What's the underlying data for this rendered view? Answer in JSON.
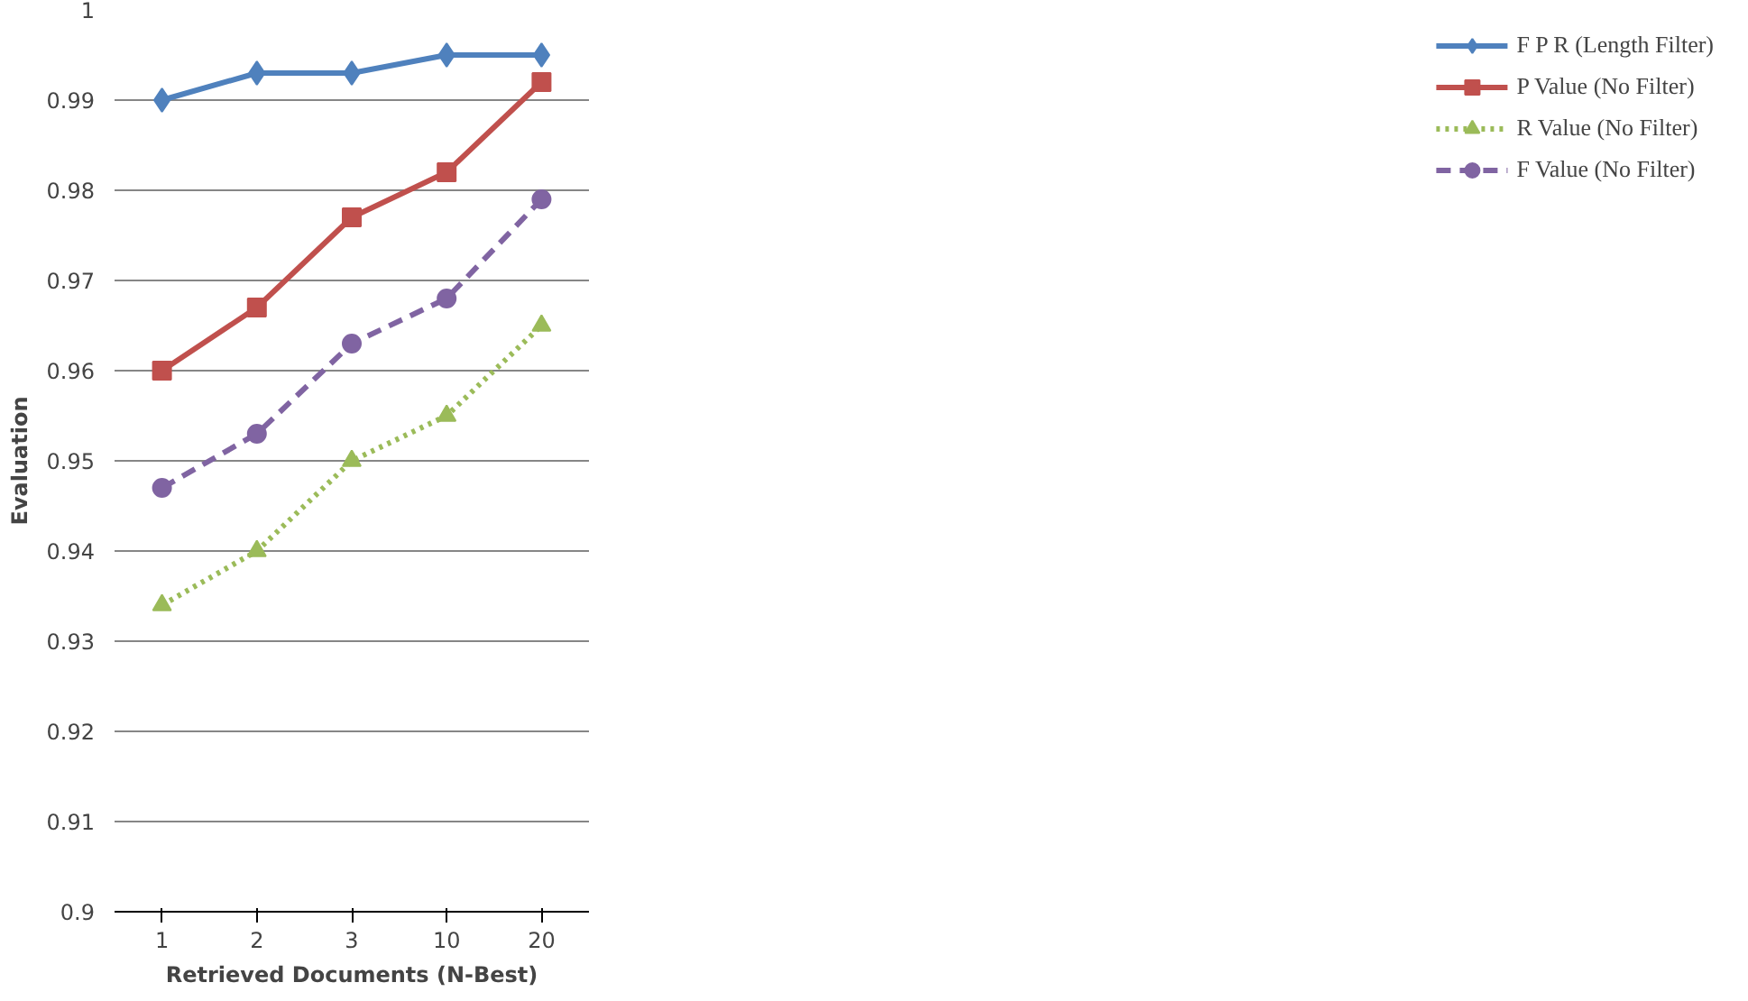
{
  "chart_data": {
    "type": "line",
    "xlabel": "Retrieved Documents (N-Best)",
    "ylabel": "Evaluation",
    "categories": [
      "1",
      "2",
      "3",
      "10",
      "20"
    ],
    "ylim": [
      0.9,
      1
    ],
    "yticks": [
      0.9,
      0.91,
      0.92,
      0.93,
      0.94,
      0.95,
      0.96,
      0.97,
      0.98,
      0.99,
      1
    ],
    "grid": "y",
    "legend": "right",
    "series": [
      {
        "name": "F P R (Length Filter)",
        "color": "#4f81bd",
        "marker": "diamond",
        "line_style": "solid",
        "values": [
          0.99,
          0.993,
          0.993,
          0.995,
          0.995
        ]
      },
      {
        "name": "P Value (No Filter)",
        "color": "#c0504d",
        "marker": "square",
        "line_style": "solid",
        "values": [
          0.96,
          0.967,
          0.977,
          0.982,
          0.992
        ]
      },
      {
        "name": "R Value (No Filter)",
        "color": "#9bbb59",
        "marker": "triangle",
        "line_style": "dotted",
        "values": [
          0.934,
          0.94,
          0.95,
          0.955,
          0.965
        ]
      },
      {
        "name": "F Value (No Filter)",
        "color": "#8064a2",
        "marker": "circle",
        "line_style": "dashed",
        "values": [
          0.947,
          0.953,
          0.963,
          0.968,
          0.979
        ]
      }
    ]
  }
}
